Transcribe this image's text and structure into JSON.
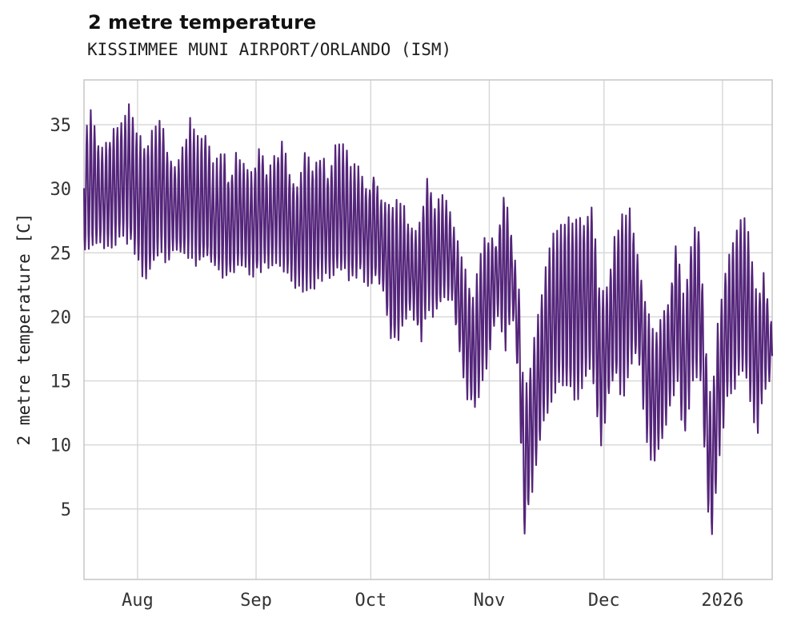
{
  "page": {
    "background": "#ffffff"
  },
  "header": {
    "title": "2 metre temperature",
    "subtitle": "KISSIMMEE MUNI AIRPORT/ORLANDO (ISM)"
  },
  "chart_data": {
    "type": "line",
    "title": "2 metre temperature",
    "subtitle": "KISSIMMEE MUNI AIRPORT/ORLANDO (ISM)",
    "xlabel": "",
    "ylabel": "2 metre temperature [C]",
    "series_name": "2 metre temperature",
    "line_color": "#54257a",
    "grid": true,
    "grid_color": "#d6d6d6",
    "axis_box_color": "#c9c9c9",
    "tick_label_color": "#333333",
    "ylim": [
      -0.5,
      38.5
    ],
    "yticks": [
      5,
      10,
      15,
      20,
      25,
      30,
      35
    ],
    "x_domain_days": [
      0,
      180
    ],
    "x_start_note": "day 0 = mid-July 2025, day 180 = mid-January 2026",
    "xticks": [
      {
        "day": 14,
        "label": "Aug"
      },
      {
        "day": 45,
        "label": "Sep"
      },
      {
        "day": 75,
        "label": "Oct"
      },
      {
        "day": 106,
        "label": "Nov"
      },
      {
        "day": 136,
        "label": "Dec"
      },
      {
        "day": 167,
        "label": "2026"
      }
    ],
    "sampling_hours": 3,
    "envelope_note": "daily_envelope_keyframes entries are [day_index, daily_min_C, daily_max_C] read from the plot; series oscillates diurnally between min and max",
    "daily_envelope_keyframes": [
      [
        0,
        25.0,
        34.6
      ],
      [
        2,
        25.2,
        36.1
      ],
      [
        4,
        26.0,
        33.0
      ],
      [
        6,
        25.5,
        33.2
      ],
      [
        8,
        26.0,
        34.8
      ],
      [
        10,
        26.2,
        35.0
      ],
      [
        12,
        26.0,
        36.6
      ],
      [
        14,
        24.5,
        34.0
      ],
      [
        16,
        22.7,
        33.4
      ],
      [
        18,
        24.0,
        34.3
      ],
      [
        20,
        25.0,
        35.2
      ],
      [
        22,
        24.5,
        33.0
      ],
      [
        24,
        25.0,
        31.5
      ],
      [
        26,
        24.8,
        33.2
      ],
      [
        28,
        25.0,
        35.4
      ],
      [
        30,
        24.0,
        33.5
      ],
      [
        32,
        24.5,
        34.3
      ],
      [
        34,
        24.0,
        31.2
      ],
      [
        36,
        23.5,
        33.4
      ],
      [
        38,
        23.0,
        30.5
      ],
      [
        40,
        23.8,
        33.0
      ],
      [
        42,
        24.0,
        32.0
      ],
      [
        44,
        23.5,
        30.8
      ],
      [
        46,
        23.5,
        33.5
      ],
      [
        48,
        24.0,
        31.0
      ],
      [
        50,
        24.5,
        32.3
      ],
      [
        52,
        23.8,
        33.6
      ],
      [
        54,
        23.0,
        31.0
      ],
      [
        56,
        22.4,
        30.0
      ],
      [
        58,
        22.3,
        33.4
      ],
      [
        60,
        22.5,
        31.5
      ],
      [
        62,
        23.0,
        32.8
      ],
      [
        64,
        23.3,
        31.0
      ],
      [
        66,
        23.5,
        33.3
      ],
      [
        68,
        23.4,
        33.5
      ],
      [
        70,
        23.0,
        31.5
      ],
      [
        72,
        23.6,
        31.7
      ],
      [
        74,
        22.8,
        29.5
      ],
      [
        76,
        23.0,
        31.6
      ],
      [
        78,
        22.5,
        28.6
      ],
      [
        80,
        18.5,
        29.0
      ],
      [
        82,
        17.8,
        28.8
      ],
      [
        84,
        19.5,
        28.4
      ],
      [
        86,
        20.5,
        26.4
      ],
      [
        88,
        18.0,
        27.6
      ],
      [
        90,
        21.0,
        31.1
      ],
      [
        92,
        20.0,
        28.4
      ],
      [
        94,
        21.5,
        29.8
      ],
      [
        96,
        21.8,
        27.9
      ],
      [
        98,
        17.5,
        25.4
      ],
      [
        100,
        14.0,
        23.0
      ],
      [
        102,
        12.6,
        21.6
      ],
      [
        104,
        15.0,
        25.4
      ],
      [
        106,
        17.0,
        26.3
      ],
      [
        108,
        20.8,
        25.8
      ],
      [
        110,
        17.2,
        30.1
      ],
      [
        112,
        20.9,
        26.0
      ],
      [
        114,
        13.0,
        21.5
      ],
      [
        115,
        2.6,
        13.4
      ],
      [
        117,
        6.3,
        16.8
      ],
      [
        119,
        9.8,
        20.5
      ],
      [
        121,
        12.8,
        24.1
      ],
      [
        123,
        13.9,
        26.6
      ],
      [
        125,
        14.8,
        27.6
      ],
      [
        127,
        14.2,
        27.4
      ],
      [
        129,
        13.6,
        28.1
      ],
      [
        131,
        15.2,
        27.3
      ],
      [
        133,
        16.0,
        28.9
      ],
      [
        135,
        9.6,
        21.8
      ],
      [
        137,
        13.4,
        22.6
      ],
      [
        139,
        15.5,
        26.3
      ],
      [
        141,
        13.6,
        28.3
      ],
      [
        143,
        16.5,
        28.0
      ],
      [
        145,
        17.0,
        24.3
      ],
      [
        147,
        11.0,
        21.0
      ],
      [
        149,
        8.1,
        18.5
      ],
      [
        151,
        10.4,
        20.3
      ],
      [
        153,
        12.5,
        21.2
      ],
      [
        155,
        15.3,
        26.2
      ],
      [
        157,
        10.5,
        20.9
      ],
      [
        159,
        14.8,
        26.6
      ],
      [
        161,
        16.2,
        27.1
      ],
      [
        163,
        6.0,
        16.0
      ],
      [
        164,
        2.0,
        13.0
      ],
      [
        166,
        8.8,
        20.0
      ],
      [
        168,
        13.5,
        23.9
      ],
      [
        170,
        14.5,
        26.2
      ],
      [
        172,
        15.8,
        27.9
      ],
      [
        174,
        14.2,
        26.3
      ],
      [
        176,
        10.6,
        21.5
      ],
      [
        178,
        14.8,
        23.3
      ],
      [
        180,
        14.9,
        18.8
      ]
    ]
  }
}
